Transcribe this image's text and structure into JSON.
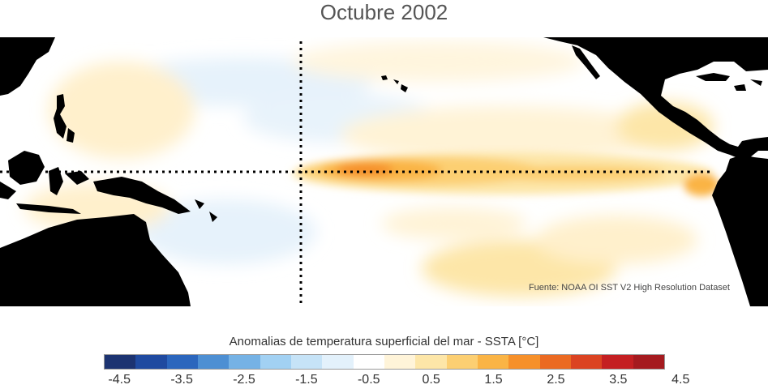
{
  "title": "Octubre 2002",
  "source": "Fuente: NOAA OI SST V2 High Resolution Dataset",
  "colorbar": {
    "title": "Anomalias de temperatura superficial del mar - SSTA  [°C]",
    "colors": [
      "#1c3371",
      "#1f4aa0",
      "#2b66bd",
      "#4d8fd3",
      "#75b2e5",
      "#a2d1f3",
      "#c6e3f7",
      "#e3f1fb",
      "#ffffff",
      "#fff4d9",
      "#fde6a8",
      "#fccf72",
      "#fab445",
      "#f6902a",
      "#eb6a22",
      "#db4322",
      "#c41f22",
      "#a51a1f"
    ],
    "tick_labels": [
      "-4.5",
      "-3.5",
      "-2.5",
      "-1.5",
      "-0.5",
      "0.5",
      "1.5",
      "2.5",
      "3.5",
      "4.5"
    ]
  },
  "map": {
    "land_color": "#000000",
    "reference_lines": [
      "equator",
      "180° meridian"
    ]
  }
}
